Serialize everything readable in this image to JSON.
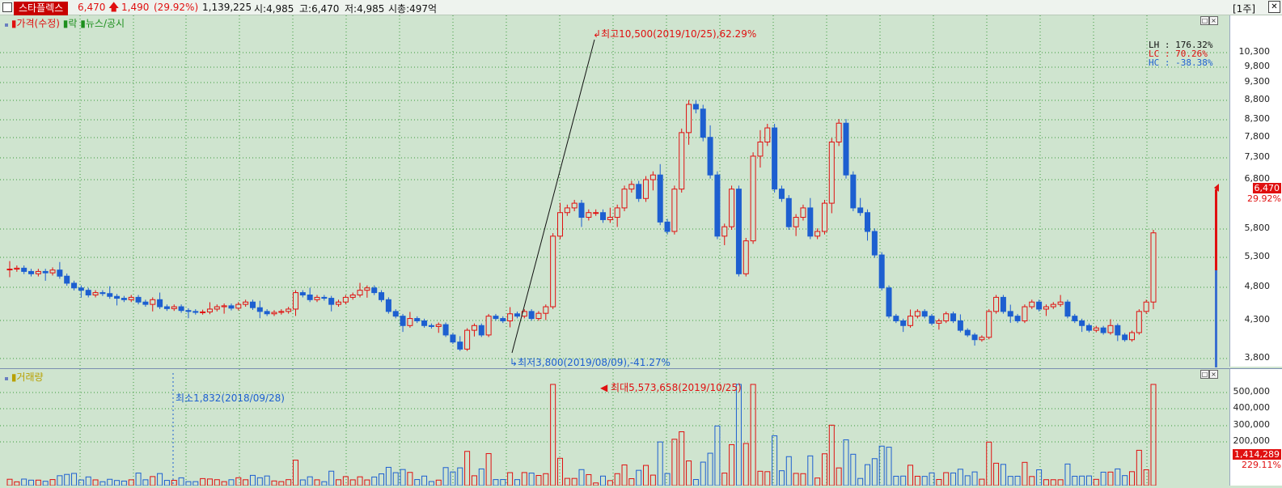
{
  "topbar": {
    "stock_name": "스타플렉스",
    "price": "6,470",
    "change": "1,490",
    "change_pct": "(29.92%)",
    "volume": "1,139,225",
    "open": "시:4,985",
    "high": "고:6,470",
    "low": "저:4,985",
    "mcap": "시총:497억",
    "period": "[1주]",
    "close_label": "✕"
  },
  "price_panel": {
    "legend": [
      "가격(수정)",
      "락",
      "뉴스/공시"
    ],
    "high_anno": "최고10,500(2019/10/25),62.29%",
    "low_anno": "최저3,800(2019/08/09),-41.27%",
    "stats": {
      "lh_label": "LH",
      "lh_value": ": 176.32%",
      "lc_label": "LC",
      "lc_value": ": 70.26%",
      "hc_label": "HC",
      "hc_value": ": -38.38%"
    },
    "axis_labels": [
      "10,300",
      "9,800",
      "9,300",
      "8,800",
      "8,300",
      "7,800",
      "7,300",
      "6,800",
      "6,470",
      "29.92%",
      "5,800",
      "5,300",
      "4,800",
      "4,300",
      "3,800"
    ],
    "current_price": "6,470",
    "current_pct": "29.92%"
  },
  "volume_panel": {
    "legend": "거래량",
    "min_anno": "최소1,832(2018/09/28)",
    "max_anno": "최대5,573,658(2019/10/25)",
    "axis_labels": [
      "500,000",
      "400,000",
      "300,000",
      "200,000"
    ],
    "current_volume": "1,414,289",
    "current_pct": "229.11%"
  },
  "colors": {
    "up": "#e01010",
    "down": "#1d5fd0",
    "background": "#cfe4cf",
    "grid": "#3a9a3a"
  }
}
